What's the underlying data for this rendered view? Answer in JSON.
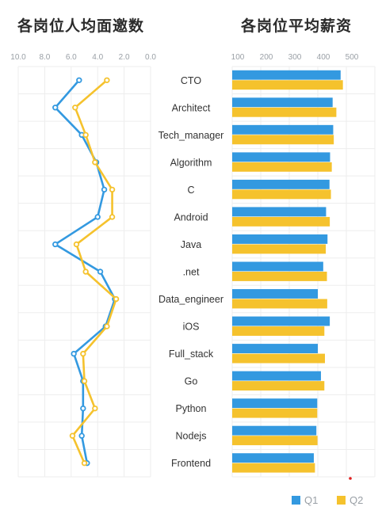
{
  "chart_data": [
    {
      "type": "line",
      "title": "各岗位人均面邀数",
      "x_ticks": [
        "10.0",
        "8.0",
        "6.0",
        "4.0",
        "2.0",
        "0.0"
      ],
      "xlim": [
        10,
        0
      ],
      "categories": [
        "CTO",
        "Architect",
        "Tech_manager",
        "Algorithm",
        "C",
        "Android",
        "Java",
        ".net",
        "Data_engineer",
        "iOS",
        "Full_stack",
        "Go",
        "Python",
        "Nodejs",
        "Frontend"
      ],
      "series": [
        {
          "name": "Q1",
          "color": "#3399e0",
          "values": [
            5.4,
            7.2,
            5.2,
            4.1,
            3.5,
            4.0,
            7.2,
            3.8,
            2.7,
            3.4,
            5.8,
            5.1,
            5.1,
            5.2,
            4.8
          ]
        },
        {
          "name": "Q2",
          "color": "#f5c22d",
          "values": [
            3.3,
            5.7,
            4.9,
            4.2,
            2.9,
            2.9,
            5.6,
            4.9,
            2.6,
            3.3,
            5.1,
            5.0,
            4.2,
            5.9,
            5.0
          ]
        }
      ]
    },
    {
      "type": "bar",
      "title": "各岗位平均薪资",
      "x_ticks": [
        "100",
        "200",
        "300",
        "400",
        "500"
      ],
      "xlim": [
        100,
        500
      ],
      "categories": [
        "CTO",
        "Architect",
        "Tech_manager",
        "Algorithm",
        "C",
        "Android",
        "Java",
        ".net",
        "Data_engineer",
        "iOS",
        "Full_stack",
        "Go",
        "Python",
        "Nodejs",
        "Frontend"
      ],
      "series": [
        {
          "name": "Q1",
          "color": "#3399e0",
          "values": [
            480,
            452,
            454,
            443,
            441,
            429,
            434,
            419,
            400,
            442,
            400,
            411,
            398,
            395,
            386
          ]
        },
        {
          "name": "Q2",
          "color": "#f5c22d",
          "values": [
            488,
            465,
            456,
            449,
            446,
            442,
            428,
            432,
            433,
            423,
            425,
            423,
            398,
            399,
            390
          ]
        }
      ]
    }
  ],
  "legend": {
    "q1": "Q1",
    "q2": "Q2"
  }
}
